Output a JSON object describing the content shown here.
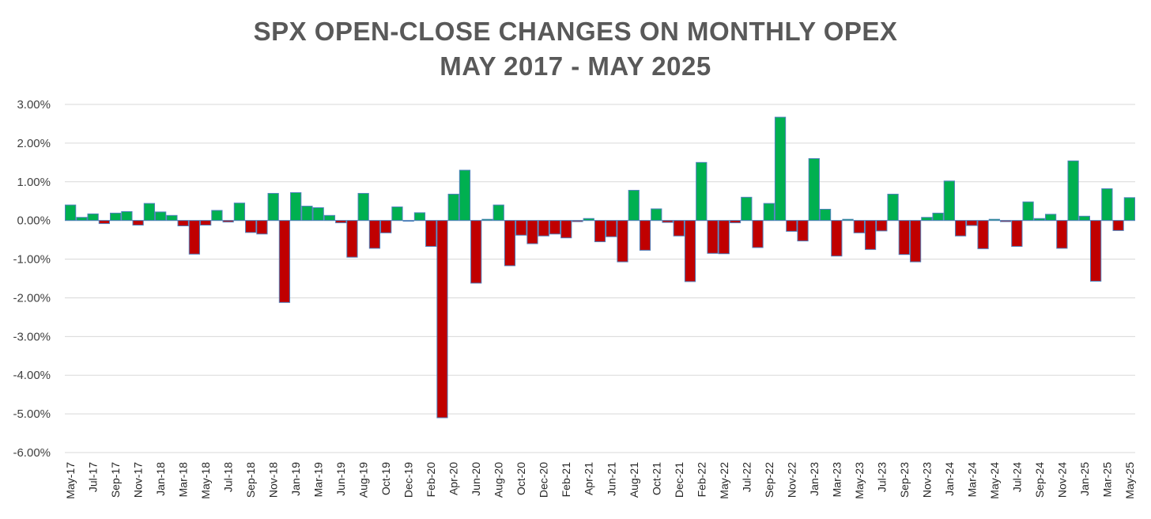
{
  "chart_data": {
    "type": "bar",
    "title": "SPX OPEN-CLOSE CHANGES ON MONTHLY OPEX",
    "subtitle": "MAY 2017 - MAY 2025",
    "xlabel": "",
    "ylabel": "",
    "ylim": [
      -6.0,
      3.0
    ],
    "yticks": [
      "3.00%",
      "2.00%",
      "1.00%",
      "0.00%",
      "-1.00%",
      "-2.00%",
      "-3.00%",
      "-4.00%",
      "-5.00%",
      "-6.00%"
    ],
    "grid": true,
    "legend": "none",
    "colors": {
      "positive": "#00b050",
      "negative": "#c00000",
      "bar_outline": "#4f81bd",
      "grid": "#d9d9d9",
      "title": "#595959"
    },
    "categories": [
      "May-17",
      "Jun-17",
      "Jul-17",
      "Aug-17",
      "Sep-17",
      "Oct-17",
      "Nov-17",
      "Dec-17",
      "Jan-18",
      "Feb-18",
      "Mar-18",
      "Apr-18",
      "May-18",
      "Jun-18",
      "Jul-18",
      "Aug-18",
      "Sep-18",
      "Oct-18",
      "Nov-18",
      "Dec-18",
      "Jan-19",
      "Feb-19",
      "Mar-19",
      "Apr-19",
      "Jun-19",
      "Jul-19",
      "Aug-19",
      "Sep-19",
      "Oct-19",
      "Nov-19",
      "Dec-19",
      "Jan-20",
      "Feb-20",
      "Mar-20",
      "Apr-20",
      "May-20",
      "Jun-20",
      "Jul-20",
      "Aug-20",
      "Sep-20",
      "Oct-20",
      "Nov-20",
      "Dec-20",
      "Jan-21",
      "Feb-21",
      "Mar-21",
      "Apr-21",
      "May-21",
      "Jun-21",
      "Jul-21",
      "Aug-21",
      "Sep-21",
      "Oct-21",
      "Nov-21",
      "Dec-21",
      "Jan-22",
      "Feb-22",
      "Mar-22",
      "May-22",
      "Jun-22",
      "Jul-22",
      "Aug-22",
      "Sep-22",
      "Oct-22",
      "Nov-22",
      "Dec-22",
      "Jan-23",
      "Feb-23",
      "Mar-23",
      "Apr-23",
      "May-23",
      "Jun-23",
      "Jul-23",
      "Aug-23",
      "Sep-23",
      "Oct-23",
      "Nov-23",
      "Dec-23",
      "Jan-24",
      "Feb-24",
      "Mar-24",
      "Apr-24",
      "May-24",
      "Jun-24",
      "Jul-24",
      "Aug-24",
      "Sep-24",
      "Oct-24",
      "Nov-24",
      "Dec-24",
      "Jan-25",
      "Feb-25",
      "Mar-25",
      "Apr-25",
      "May-25"
    ],
    "x_tick_labels": [
      "May-17",
      "Jul-17",
      "Sep-17",
      "Nov-17",
      "Jan-18",
      "Mar-18",
      "May-18",
      "Jul-18",
      "Sep-18",
      "Nov-18",
      "Jan-19",
      "Mar-19",
      "Jun-19",
      "Aug-19",
      "Oct-19",
      "Dec-19",
      "Feb-20",
      "Apr-20",
      "Jun-20",
      "Aug-20",
      "Oct-20",
      "Dec-20",
      "Feb-21",
      "Apr-21",
      "Jun-21",
      "Aug-21",
      "Oct-21",
      "Dec-21",
      "Feb-22",
      "May-22",
      "Jul-22",
      "Sep-22",
      "Nov-22",
      "Jan-23",
      "Mar-23",
      "May-23",
      "Jul-23",
      "Sep-23",
      "Nov-23",
      "Jan-24",
      "Mar-24",
      "May-24",
      "Jul-24",
      "Sep-24",
      "Nov-24",
      "Jan-25",
      "Mar-25",
      "May-25"
    ],
    "values": [
      0.4,
      0.08,
      0.17,
      -0.08,
      0.19,
      0.23,
      -0.12,
      0.44,
      0.22,
      0.13,
      -0.14,
      -0.87,
      -0.12,
      0.26,
      -0.04,
      0.45,
      -0.31,
      -0.35,
      0.7,
      -2.12,
      0.72,
      0.37,
      0.33,
      0.13,
      -0.06,
      -0.95,
      0.7,
      -0.72,
      -0.32,
      0.35,
      -0.02,
      0.2,
      -0.67,
      -5.1,
      0.68,
      1.3,
      -1.62,
      0.03,
      0.4,
      -1.17,
      -0.38,
      -0.6,
      -0.4,
      -0.35,
      -0.45,
      -0.03,
      0.05,
      -0.55,
      -0.42,
      -1.07,
      0.78,
      -0.77,
      0.3,
      -0.05,
      -0.4,
      -1.58,
      1.5,
      -0.85,
      -0.86,
      -0.06,
      0.6,
      -0.7,
      0.44,
      2.67,
      -0.28,
      -0.53,
      1.6,
      0.29,
      -0.92,
      0.03,
      -0.32,
      -0.75,
      -0.27,
      0.68,
      -0.88,
      -1.07,
      0.08,
      0.19,
      1.02,
      -0.4,
      -0.13,
      -0.73,
      0.03,
      -0.03,
      -0.67,
      0.48,
      0.05,
      0.16,
      -0.72,
      1.54,
      0.11,
      -1.57,
      0.82,
      -0.26,
      0.59
    ]
  }
}
